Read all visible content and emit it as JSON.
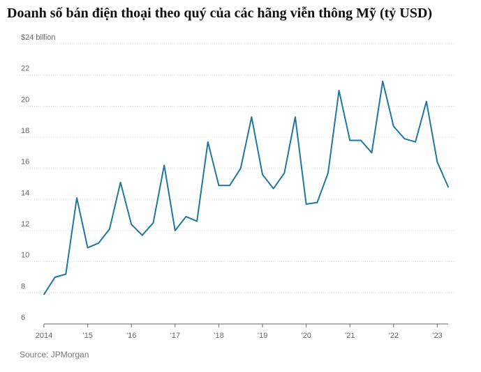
{
  "title": "Doanh số bán điện thoại theo quý của các hãng viễn thông Mỹ (tỷ USD)",
  "source": "Source: JPMorgan",
  "chart_data": {
    "type": "line",
    "title": "Doanh số bán điện thoại theo quý của các hãng viễn thông Mỹ (tỷ USD)",
    "xlabel": "",
    "ylabel": "",
    "ylim": [
      6,
      24
    ],
    "yticks": [
      6,
      8,
      10,
      12,
      14,
      16,
      18,
      20,
      22,
      24
    ],
    "ytick_labels": [
      "6",
      "8",
      "10",
      "12",
      "14",
      "16",
      "18",
      "20",
      "22",
      "$24 billion"
    ],
    "xticks": [
      "2014",
      "’15",
      "’16",
      "’17",
      "’18",
      "’19",
      "’20",
      "’21",
      "’22",
      "’23"
    ],
    "grid": true,
    "color": "#1f77a0",
    "series": [
      {
        "values": [
          7.9,
          9.0,
          9.2,
          14.1,
          10.9,
          11.2,
          12.1,
          15.1,
          12.4,
          11.7,
          12.5,
          16.2,
          12.0,
          12.9,
          12.6,
          17.7,
          14.9,
          14.9,
          16.0,
          19.3,
          15.6,
          14.7,
          15.7,
          19.3,
          13.7,
          13.8,
          15.7,
          21.0,
          17.8,
          17.8,
          17.0,
          21.6,
          18.7,
          17.9,
          17.7,
          20.3,
          16.4,
          14.8
        ]
      }
    ]
  }
}
